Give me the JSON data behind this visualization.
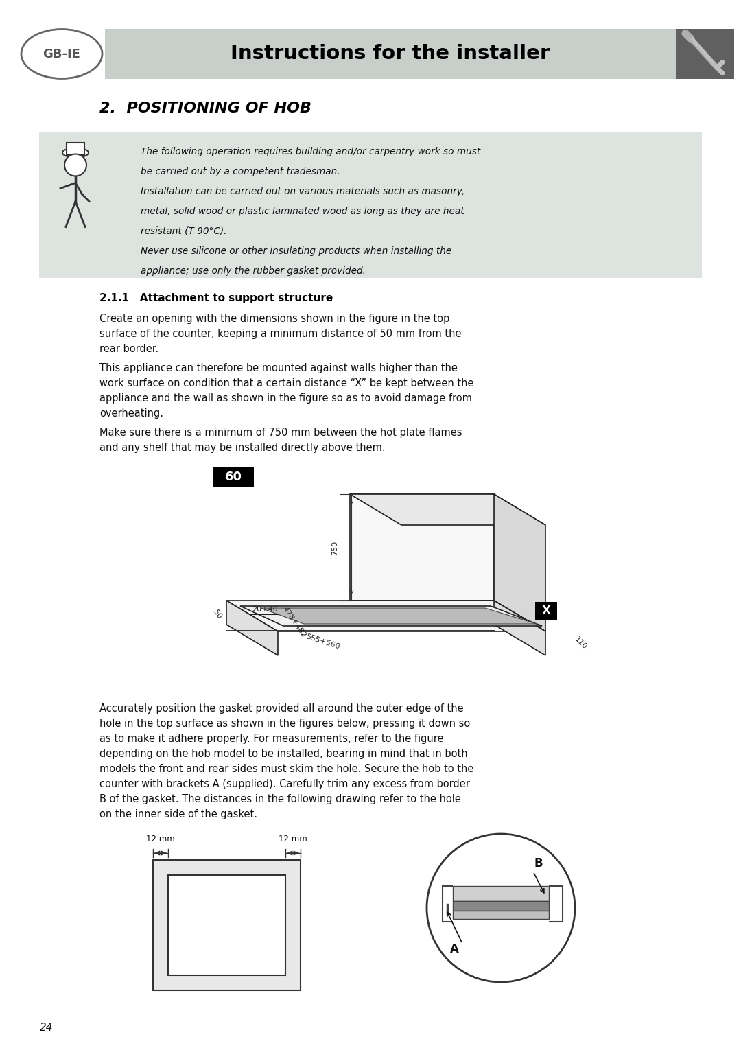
{
  "page_width": 10.8,
  "page_height": 15.11,
  "bg_color": "#ffffff",
  "header_bg": "#c8ceca",
  "header_text": "Instructions for the installer",
  "header_text_color": "#000000",
  "header_fontsize": 21,
  "gb_ie_text": "GB-IE",
  "section_title": "2.  POSITIONING OF HOB",
  "warning_bg": "#dde3df",
  "warning_text_lines": [
    "The following operation requires building and/or carpentry work so must",
    "be carried out by a competent tradesman.",
    "Installation can be carried out on various materials such as masonry,",
    "metal, solid wood or plastic laminated wood as long as they are heat",
    "resistant (T 90°C).",
    "Never use silicone or other insulating products when installing the",
    "appliance; use only the rubber gasket provided."
  ],
  "subsection_title": "2.1.1   Attachment to support structure",
  "body_text_lines": [
    "Create an opening with the dimensions shown in the figure in the top",
    "surface of the counter, keeping a minimum distance of 50 mm from the",
    "rear border.",
    "",
    "This appliance can therefore be mounted against walls higher than the",
    "work surface on condition that a certain distance “X” be kept between the",
    "appliance and the wall as shown in the figure so as to avoid damage from",
    "overheating.",
    "",
    "Make sure there is a minimum of 750 mm between the hot plate flames",
    "and any shelf that may be installed directly above them."
  ],
  "gasket_text_lines": [
    "Accurately position the gasket provided all around the outer edge of the",
    "hole in the top surface as shown in the figures below, pressing it down so",
    "as to make it adhere properly. For measurements, refer to the figure",
    "depending on the hob model to be installed, bearing in mind that in both",
    "models the front and rear sides must skim the hole. Secure the hob to the",
    "counter with brackets A (supplied). Carefully trim any excess from border",
    "B of the gasket. The distances in the following drawing refer to the hole",
    "on the inner side of the gasket."
  ],
  "page_number": "24"
}
